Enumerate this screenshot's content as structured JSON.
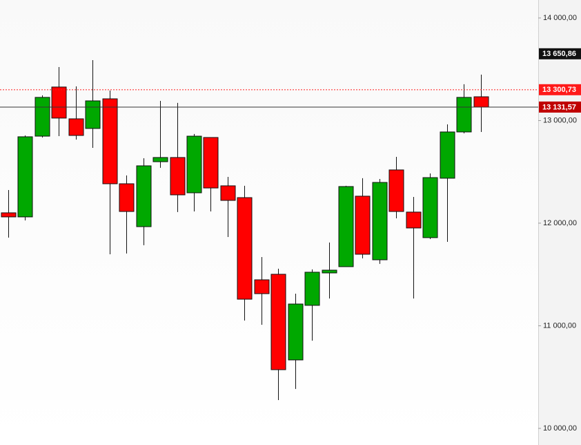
{
  "chart_data": {
    "type": "candlestick",
    "series": {
      "open": [
        12101,
        12061,
        12848,
        13327,
        13017,
        12923,
        13212,
        12384,
        11966,
        12599,
        12640,
        12296,
        12835,
        12364,
        12249,
        11448,
        11502,
        10667,
        11199,
        11515,
        11576,
        12263,
        11643,
        12519,
        12108,
        11859,
        12438,
        12889,
        13232
      ],
      "high": [
        12323,
        12855,
        13246,
        13522,
        13333,
        13589,
        13293,
        12465,
        12633,
        13192,
        13172,
        12869,
        12835,
        12451,
        12364,
        11670,
        11556,
        11313,
        11549,
        11811,
        12364,
        12438,
        12431,
        12646,
        12256,
        12485,
        12963,
        13354,
        13448
      ],
      "low": [
        11859,
        12027,
        12835,
        12848,
        12815,
        12734,
        11697,
        11704,
        11785,
        12539,
        12108,
        12114,
        12114,
        11865,
        11051,
        11010,
        10276,
        10384,
        10855,
        11266,
        11576,
        11657,
        11603,
        12047,
        11266,
        11845,
        11818,
        12875,
        12889
      ],
      "close": [
        12061,
        12842,
        13226,
        13024,
        12855,
        13192,
        12384,
        12114,
        12559,
        12640,
        12276,
        12848,
        12343,
        12222,
        11259,
        11313,
        10572,
        11212,
        11522,
        11542,
        12357,
        11697,
        12397,
        12114,
        11953,
        12444,
        12889,
        13226,
        13131.57
      ]
    },
    "up_color": "#00a800",
    "down_color": "#ff0000",
    "ylim": [
      9838,
      14175
    ],
    "yticks": [
      {
        "value": 10000,
        "label": "10 000,00"
      },
      {
        "value": 11000,
        "label": "11 000,00"
      },
      {
        "value": 12000,
        "label": "12 000,00"
      },
      {
        "value": 13000,
        "label": "13 000,00"
      },
      {
        "value": 14000,
        "label": "14 000,00"
      }
    ],
    "grid": false,
    "price_labels": [
      {
        "value": 13650.86,
        "label": "13 650,86",
        "color": "#111111",
        "line": "none"
      },
      {
        "value": 13300.73,
        "label": "13 300,73",
        "color": "#ff1a1a",
        "line": "dashed"
      },
      {
        "value": 13131.57,
        "label": "13 131,57",
        "color": "#c00000",
        "line": "solid"
      }
    ]
  }
}
